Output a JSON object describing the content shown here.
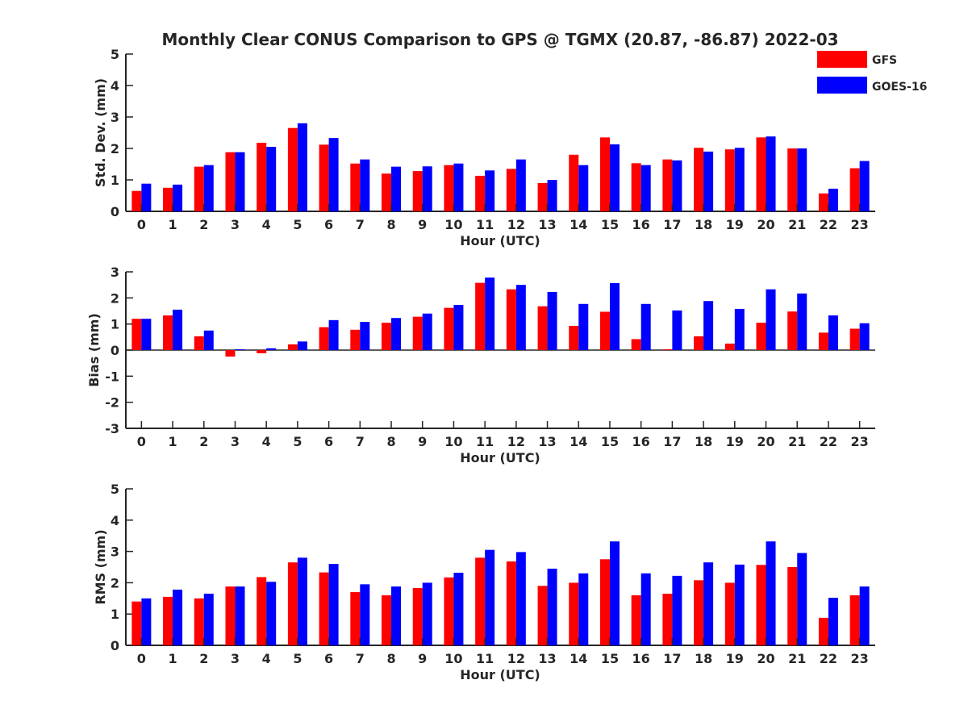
{
  "title": "Monthly Clear CONUS Comparison to GPS @ TGMX (20.87, -86.87) 2022-03",
  "legend": [
    {
      "name": "GFS",
      "color": "#ff0000"
    },
    {
      "name": "GOES-16",
      "color": "#0000ff"
    }
  ],
  "chart_data": [
    {
      "type": "bar",
      "xlabel": "Hour (UTC)",
      "ylabel": "Std. Dev. (mm)",
      "ylim": [
        0,
        5
      ],
      "yticks": [
        0,
        1,
        2,
        3,
        4,
        5
      ],
      "categories": [
        "0",
        "1",
        "2",
        "3",
        "4",
        "5",
        "6",
        "7",
        "8",
        "9",
        "10",
        "11",
        "12",
        "13",
        "14",
        "15",
        "16",
        "17",
        "18",
        "19",
        "20",
        "21",
        "22",
        "23"
      ],
      "series": [
        {
          "name": "GFS",
          "color": "#ff0000",
          "values": [
            0.65,
            0.75,
            1.42,
            1.88,
            2.18,
            2.65,
            2.12,
            1.52,
            1.2,
            1.28,
            1.47,
            1.13,
            1.35,
            0.9,
            1.8,
            2.35,
            1.53,
            1.65,
            2.02,
            1.97,
            2.35,
            2.0,
            0.57,
            1.37
          ]
        },
        {
          "name": "GOES-16",
          "color": "#0000ff",
          "values": [
            0.88,
            0.85,
            1.47,
            1.88,
            2.05,
            2.8,
            2.33,
            1.65,
            1.42,
            1.43,
            1.52,
            1.3,
            1.65,
            1.0,
            1.47,
            2.13,
            1.47,
            1.62,
            1.9,
            2.02,
            2.38,
            2.0,
            0.72,
            1.6
          ]
        }
      ]
    },
    {
      "type": "bar",
      "xlabel": "Hour (UTC)",
      "ylabel": "Bias (mm)",
      "ylim": [
        -3,
        3
      ],
      "yticks": [
        -3,
        -2,
        -1,
        0,
        1,
        2,
        3
      ],
      "categories": [
        "0",
        "1",
        "2",
        "3",
        "4",
        "5",
        "6",
        "7",
        "8",
        "9",
        "10",
        "11",
        "12",
        "13",
        "14",
        "15",
        "16",
        "17",
        "18",
        "19",
        "20",
        "21",
        "22",
        "23"
      ],
      "series": [
        {
          "name": "GFS",
          "color": "#ff0000",
          "values": [
            1.2,
            1.33,
            0.53,
            -0.25,
            -0.12,
            0.22,
            0.88,
            0.78,
            1.05,
            1.28,
            1.62,
            2.58,
            2.33,
            1.68,
            0.93,
            1.47,
            0.42,
            0.03,
            0.53,
            0.25,
            1.05,
            1.48,
            0.67,
            0.82
          ]
        },
        {
          "name": "GOES-16",
          "color": "#0000ff",
          "values": [
            1.2,
            1.55,
            0.75,
            0.03,
            0.07,
            0.33,
            1.15,
            1.08,
            1.23,
            1.4,
            1.73,
            2.78,
            2.5,
            2.23,
            1.77,
            2.57,
            1.77,
            1.52,
            1.88,
            1.58,
            2.33,
            2.17,
            1.33,
            1.03
          ]
        }
      ]
    },
    {
      "type": "bar",
      "xlabel": "Hour (UTC)",
      "ylabel": "RMS (mm)",
      "ylim": [
        0,
        5
      ],
      "yticks": [
        0,
        1,
        2,
        3,
        4,
        5
      ],
      "categories": [
        "0",
        "1",
        "2",
        "3",
        "4",
        "5",
        "6",
        "7",
        "8",
        "9",
        "10",
        "11",
        "12",
        "13",
        "14",
        "15",
        "16",
        "17",
        "18",
        "19",
        "20",
        "21",
        "22",
        "23"
      ],
      "series": [
        {
          "name": "GFS",
          "color": "#ff0000",
          "values": [
            1.4,
            1.55,
            1.5,
            1.88,
            2.18,
            2.65,
            2.33,
            1.7,
            1.6,
            1.83,
            2.17,
            2.8,
            2.68,
            1.9,
            2.0,
            2.75,
            1.6,
            1.65,
            2.08,
            2.0,
            2.57,
            2.5,
            0.88,
            1.6
          ]
        },
        {
          "name": "GOES-16",
          "color": "#0000ff",
          "values": [
            1.5,
            1.78,
            1.65,
            1.88,
            2.03,
            2.8,
            2.6,
            1.95,
            1.88,
            2.0,
            2.32,
            3.05,
            2.98,
            2.45,
            2.3,
            3.32,
            2.3,
            2.22,
            2.65,
            2.58,
            3.32,
            2.95,
            1.52,
            1.88
          ]
        }
      ]
    }
  ]
}
